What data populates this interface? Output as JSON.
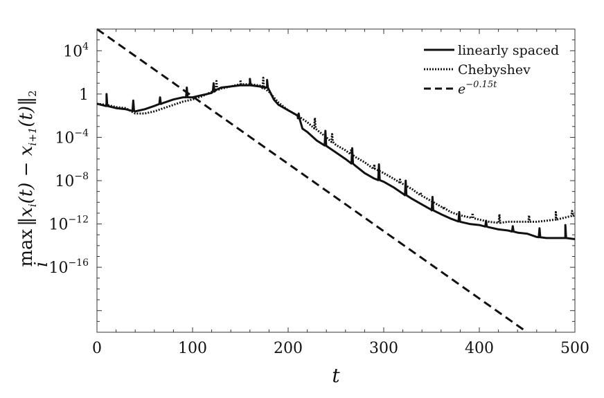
{
  "chart_data": {
    "type": "line",
    "title": "",
    "xlabel": "t",
    "ylabel": "max_i ||x_i(t) − x_{i+1}(t)||_2",
    "ylabel_parts": {
      "max": "max",
      "sub": "i",
      "body": "‖x",
      "body2": "(t) − x",
      "body3": "(t)‖",
      "idx_i": "i",
      "idx_i1": "i+1",
      "norm_sub": "2"
    },
    "xlim": [
      0,
      500
    ],
    "ylim_log10": [
      -22,
      6
    ],
    "x_ticks": [
      0,
      100,
      200,
      300,
      400,
      500
    ],
    "x_tick_labels": [
      "0",
      "100",
      "200",
      "300",
      "400",
      "500"
    ],
    "y_ticks_log10": [
      4,
      0,
      -4,
      -8,
      -12,
      -16
    ],
    "y_tick_labels": [
      {
        "base": "10",
        "exp": "4"
      },
      {
        "base": "1",
        "exp": ""
      },
      {
        "base": "10",
        "exp": "−4"
      },
      {
        "base": "10",
        "exp": "−8"
      },
      {
        "base": "10",
        "exp": "−12"
      },
      {
        "base": "10",
        "exp": "−16"
      }
    ],
    "legend": {
      "position": "top-right",
      "entries": [
        {
          "name": "linearly spaced",
          "style": "solid"
        },
        {
          "name": "Chebyshev",
          "style": "dotted"
        },
        {
          "name_base": "e",
          "name_exp": "−0.15t",
          "style": "dashed"
        }
      ]
    },
    "series": [
      {
        "name": "linearly spaced",
        "style": "solid",
        "x": [
          0,
          10,
          20,
          30,
          40,
          50,
          60,
          70,
          80,
          90,
          100,
          110,
          120,
          125,
          130,
          140,
          150,
          160,
          170,
          178,
          185,
          190,
          200,
          210,
          215,
          220,
          230,
          240,
          250,
          260,
          270,
          280,
          290,
          300,
          310,
          320,
          330,
          340,
          350,
          360,
          370,
          380,
          390,
          400,
          410,
          420,
          430,
          440,
          450,
          460,
          470,
          480,
          490,
          500
        ],
        "log10y": [
          -0.9,
          -1.1,
          -1.3,
          -1.4,
          -1.6,
          -1.4,
          -1.1,
          -0.8,
          -0.5,
          -0.3,
          -0.3,
          -0.1,
          0.1,
          0.4,
          0.6,
          0.7,
          0.8,
          0.8,
          0.7,
          0.6,
          -0.5,
          -1.0,
          -1.5,
          -2.0,
          -3.2,
          -3.5,
          -4.3,
          -4.8,
          -5.4,
          -6.0,
          -6.6,
          -7.3,
          -7.8,
          -8.1,
          -8.6,
          -9.2,
          -9.7,
          -10.2,
          -10.7,
          -11.1,
          -11.5,
          -11.8,
          -12.0,
          -12.1,
          -12.3,
          -12.5,
          -12.6,
          -12.8,
          -12.9,
          -13.2,
          -13.3,
          -13.3,
          -13.3,
          -13.4
        ],
        "spikes": [
          [
            10,
            0.0
          ],
          [
            38,
            -0.6
          ],
          [
            66,
            -0.3
          ],
          [
            94,
            0.6
          ],
          [
            122,
            1.0
          ],
          [
            160,
            1.4
          ],
          [
            178,
            1.3
          ],
          [
            211,
            -1.8
          ],
          [
            239,
            -3.4
          ],
          [
            267,
            -5.0
          ],
          [
            295,
            -6.5
          ],
          [
            323,
            -8.0
          ],
          [
            351,
            -9.5
          ],
          [
            379,
            -10.9
          ],
          [
            407,
            -11.7
          ],
          [
            435,
            -12.2
          ],
          [
            463,
            -12.4
          ],
          [
            490,
            -12.1
          ]
        ]
      },
      {
        "name": "Chebyshev",
        "style": "dotted",
        "x": [
          0,
          10,
          20,
          30,
          40,
          50,
          60,
          70,
          80,
          90,
          100,
          110,
          120,
          130,
          140,
          150,
          160,
          170,
          180,
          190,
          200,
          210,
          220,
          230,
          240,
          250,
          260,
          270,
          280,
          290,
          300,
          310,
          320,
          330,
          340,
          350,
          360,
          370,
          380,
          390,
          400,
          410,
          420,
          430,
          440,
          450,
          460,
          470,
          480,
          490,
          500
        ],
        "log10y": [
          -0.9,
          -1.0,
          -1.2,
          -1.3,
          -1.8,
          -1.8,
          -1.6,
          -1.3,
          -1.0,
          -0.7,
          -0.5,
          -0.2,
          0.2,
          0.5,
          0.7,
          0.9,
          0.9,
          0.8,
          0.2,
          -0.8,
          -1.5,
          -2.0,
          -2.6,
          -3.3,
          -4.0,
          -4.7,
          -5.2,
          -5.8,
          -6.3,
          -6.9,
          -7.3,
          -7.8,
          -8.3,
          -8.8,
          -9.4,
          -9.9,
          -10.4,
          -10.9,
          -11.2,
          -11.4,
          -11.6,
          -11.8,
          -11.9,
          -11.8,
          -11.8,
          -11.8,
          -11.8,
          -11.7,
          -11.6,
          -11.4,
          -11.2
        ],
        "spikes": [
          [
            125,
            1.2
          ],
          [
            150,
            1.3
          ],
          [
            174,
            1.5
          ],
          [
            228,
            -2.2
          ],
          [
            246,
            -3.7
          ],
          [
            266,
            -5.1
          ],
          [
            290,
            -6.5
          ],
          [
            317,
            -7.9
          ],
          [
            339,
            -9.2
          ],
          [
            363,
            -10.4
          ],
          [
            393,
            -11.0
          ],
          [
            421,
            -11.1
          ],
          [
            452,
            -11.2
          ],
          [
            480,
            -10.9
          ],
          [
            497,
            -10.8
          ]
        ]
      },
      {
        "name": "e^{−0.15t}",
        "style": "dashed",
        "x": [
          0,
          450
        ],
        "log10y": [
          6.15,
          -22.0
        ]
      }
    ]
  }
}
